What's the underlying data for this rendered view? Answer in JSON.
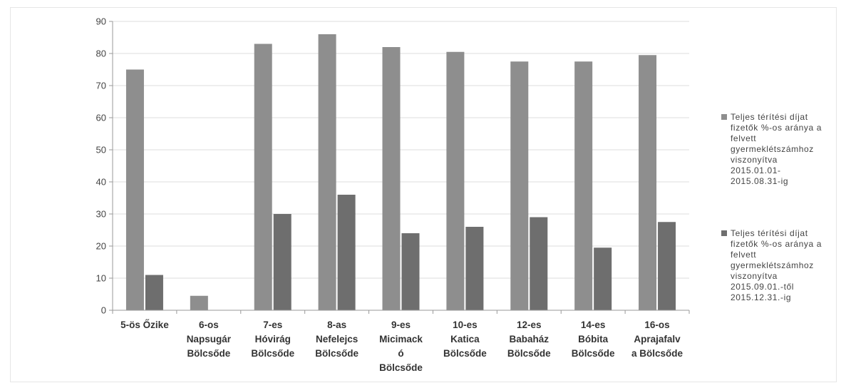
{
  "chart_data": {
    "type": "bar",
    "categories": [
      [
        "5-ös Őzike"
      ],
      [
        "6-os",
        "Napsugár",
        "Bölcsőde"
      ],
      [
        "7-es",
        "Hóvirág",
        "Bölcsőde"
      ],
      [
        "8-as",
        "Nefelejcs",
        "Bölcsőde"
      ],
      [
        "9-es",
        "Micimack",
        "ó",
        "Bölcsőde"
      ],
      [
        "10-es",
        "Katica",
        "Bölcsőde"
      ],
      [
        "12-es",
        "Babaház",
        "Bölcsőde"
      ],
      [
        "14-es",
        "Bóbita",
        "Bölcsőde"
      ],
      [
        "16-os",
        "Aprajafalv",
        "a Bölcsőde"
      ]
    ],
    "series": [
      {
        "name": [
          "Teljes térítési díjat",
          "fizetők %-os aránya a",
          "felvett",
          "gyermeklétszámhoz",
          "viszonyítva",
          "2015.01.01-",
          "2015.08.31-ig"
        ],
        "values": [
          75,
          4.5,
          83,
          86,
          82,
          80.5,
          77.5,
          77.5,
          79.5
        ],
        "color": "#8e8e8e"
      },
      {
        "name": [
          "Teljes térítési díjat",
          "fizetők %-os aránya a",
          "felvett",
          "gyermeklétszámhoz",
          "viszonyítva",
          "2015.09.01.-től",
          "2015.12.31.-ig"
        ],
        "values": [
          11,
          0,
          30,
          36,
          24,
          26,
          29,
          19.5,
          27.5
        ],
        "color": "#6e6e6e"
      }
    ],
    "yticks": [
      "0",
      "10",
      "20",
      "30",
      "40",
      "50",
      "60",
      "70",
      "80",
      "90"
    ],
    "ylim": [
      0,
      90
    ],
    "grid": true,
    "legend": "right"
  }
}
